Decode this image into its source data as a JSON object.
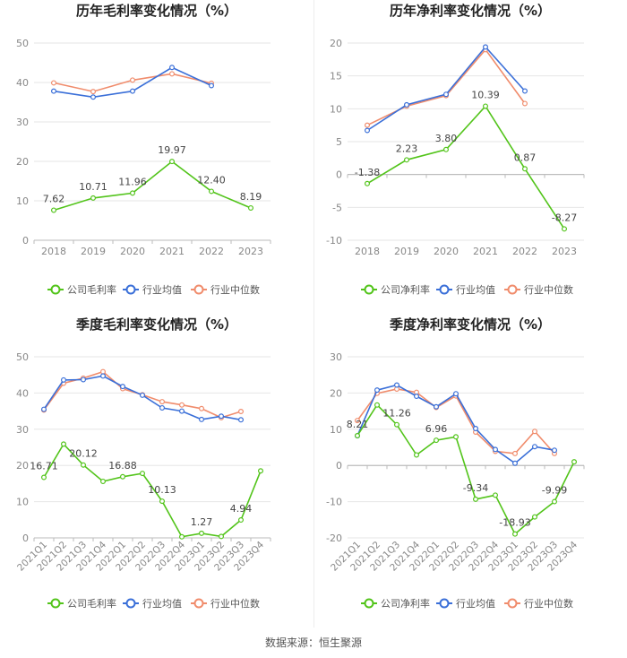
{
  "source": "数据来源：恒生聚源",
  "colors": {
    "company": "#52c41a",
    "avg": "#3a6fd8",
    "median": "#f08c6c",
    "grid": "#e6e6e6",
    "axis": "#999999"
  },
  "chart_data": [
    {
      "type": "line",
      "title": "历年毛利率变化情况（%）",
      "categories": [
        "2018",
        "2019",
        "2020",
        "2021",
        "2022",
        "2023"
      ],
      "ylim": [
        0,
        50
      ],
      "yticks": [
        0,
        10,
        20,
        30,
        40,
        50
      ],
      "rotate_x": false,
      "series": [
        {
          "name": "公司毛利率",
          "key": "company",
          "values": [
            7.62,
            10.71,
            11.96,
            19.97,
            12.4,
            8.19
          ],
          "labels": [
            "7.62",
            "10.71",
            "11.96",
            "19.97",
            "12.40",
            "8.19"
          ]
        },
        {
          "name": "行业均值",
          "key": "avg",
          "values": [
            37.8,
            36.3,
            37.8,
            43.8,
            39.2,
            null
          ]
        },
        {
          "name": "行业中位数",
          "key": "median",
          "values": [
            39.9,
            37.7,
            40.6,
            42.2,
            39.8,
            null
          ]
        }
      ],
      "legend": [
        "公司毛利率",
        "行业均值",
        "行业中位数"
      ]
    },
    {
      "type": "line",
      "title": "历年净利率变化情况（%）",
      "categories": [
        "2018",
        "2019",
        "2020",
        "2021",
        "2022",
        "2023"
      ],
      "ylim": [
        -10,
        20
      ],
      "yticks": [
        -10,
        -5,
        0,
        5,
        10,
        15,
        20
      ],
      "rotate_x": false,
      "series": [
        {
          "name": "公司净利率",
          "key": "company",
          "values": [
            -1.38,
            2.23,
            3.8,
            10.39,
            0.87,
            -8.27
          ],
          "labels": [
            "-1.38",
            "2.23",
            "3.80",
            "10.39",
            "0.87",
            "-8.27"
          ]
        },
        {
          "name": "行业均值",
          "key": "avg",
          "values": [
            6.7,
            10.6,
            12.2,
            19.4,
            12.7,
            null
          ]
        },
        {
          "name": "行业中位数",
          "key": "median",
          "values": [
            7.5,
            10.4,
            12.0,
            19.0,
            10.8,
            null
          ]
        }
      ],
      "legend": [
        "公司净利率",
        "行业均值",
        "行业中位数"
      ]
    },
    {
      "type": "line",
      "title": "季度毛利率变化情况（%）",
      "categories": [
        "2021Q1",
        "2021Q2",
        "2021Q3",
        "2021Q4",
        "2022Q1",
        "2022Q2",
        "2022Q3",
        "2022Q4",
        "2023Q1",
        "2023Q2",
        "2023Q3",
        "2023Q4"
      ],
      "ylim": [
        0,
        50
      ],
      "yticks": [
        0,
        10,
        20,
        30,
        40,
        50
      ],
      "rotate_x": true,
      "series": [
        {
          "name": "公司毛利率",
          "key": "company",
          "values": [
            16.71,
            25.9,
            20.12,
            15.6,
            16.88,
            17.8,
            10.13,
            0.3,
            1.27,
            0.4,
            4.94,
            18.5
          ],
          "labels": [
            "16.71",
            null,
            "20.12",
            null,
            "16.88",
            null,
            "10.13",
            null,
            "1.27",
            null,
            "4.94",
            null
          ]
        },
        {
          "name": "行业均值",
          "key": "avg",
          "values": [
            35.5,
            43.6,
            43.7,
            44.7,
            41.8,
            39.4,
            35.9,
            35.0,
            32.7,
            33.6,
            32.6,
            null
          ]
        },
        {
          "name": "行业中位数",
          "key": "median",
          "values": [
            35.3,
            42.7,
            44.1,
            45.9,
            41.2,
            39.5,
            37.6,
            36.7,
            35.7,
            33.2,
            34.9,
            null
          ]
        }
      ],
      "legend": [
        "公司毛利率",
        "行业均值",
        "行业中位数"
      ]
    },
    {
      "type": "line",
      "title": "季度净利率变化情况（%）",
      "categories": [
        "2021Q1",
        "2021Q2",
        "2021Q3",
        "2021Q4",
        "2022Q1",
        "2022Q2",
        "2022Q3",
        "2022Q4",
        "2023Q1",
        "2023Q2",
        "2023Q3",
        "2023Q4"
      ],
      "ylim": [
        -20,
        30
      ],
      "yticks": [
        -20,
        -10,
        0,
        10,
        20,
        30
      ],
      "rotate_x": true,
      "series": [
        {
          "name": "公司净利率",
          "key": "company",
          "values": [
            8.21,
            16.7,
            11.26,
            2.9,
            6.96,
            7.9,
            -9.34,
            -8.2,
            -18.93,
            -14.2,
            -9.99,
            1.0
          ],
          "labels": [
            "8.21",
            null,
            "11.26",
            null,
            "6.96",
            null,
            "-9.34",
            null,
            "-18.93",
            null,
            "-9.99",
            null
          ]
        },
        {
          "name": "行业均值",
          "key": "avg",
          "values": [
            8.2,
            20.8,
            22.2,
            19.1,
            16.2,
            19.8,
            10.2,
            4.4,
            0.6,
            5.2,
            4.2,
            null
          ]
        },
        {
          "name": "行业中位数",
          "key": "median",
          "values": [
            12.4,
            19.9,
            21.1,
            20.2,
            16.0,
            19.2,
            9.2,
            3.9,
            3.3,
            9.4,
            3.3,
            null
          ]
        }
      ],
      "legend": [
        "公司净利率",
        "行业均值",
        "行业中位数"
      ]
    }
  ]
}
